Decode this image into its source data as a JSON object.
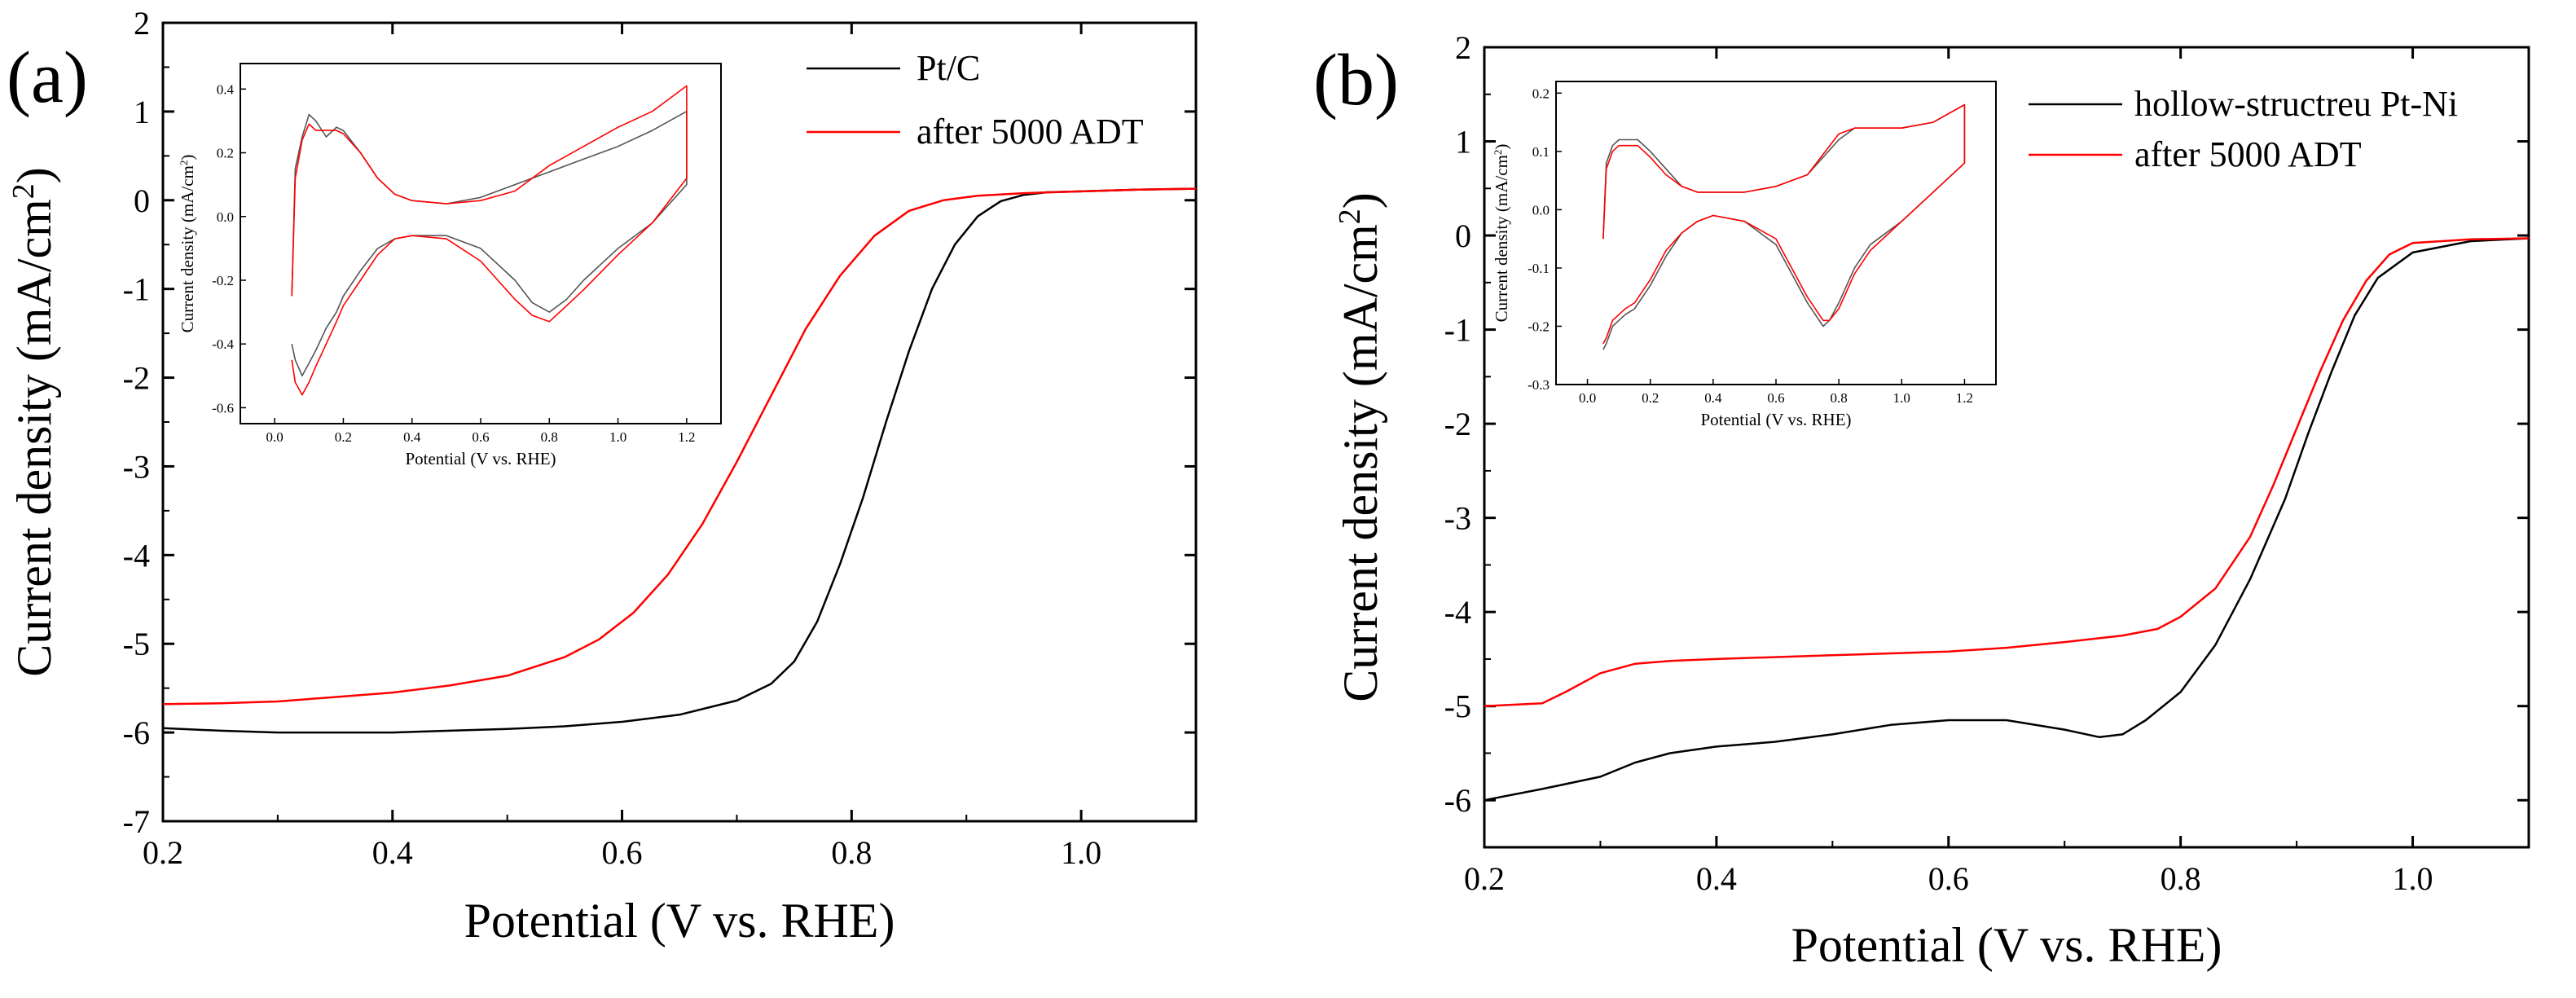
{
  "figure": {
    "description_labels": [
      "(a)",
      "(b)"
    ]
  },
  "chart_data": [
    {
      "type": "line",
      "panel_label": "(a)",
      "title": "",
      "xlabel": "Potential (V vs. RHE)",
      "ylabel": "Current density (mA/cm²)",
      "ylabel_main": "Current density (mA/cm",
      "ylabel_sup": "2",
      "ylabel_end": ")",
      "xlim": [
        0.2,
        1.1
      ],
      "ylim": [
        -7,
        2
      ],
      "xticks": [
        0.2,
        0.4,
        0.6,
        0.8,
        1.0
      ],
      "xtick_labels": [
        "0.2",
        "0.4",
        "0.6",
        "0.8",
        "1.0"
      ],
      "yticks": [
        -7,
        -6,
        -5,
        -4,
        -3,
        -2,
        -1,
        0,
        1,
        2
      ],
      "ytick_labels": [
        "-7",
        "-6",
        "-5",
        "-4",
        "-3",
        "-2",
        "-1",
        "0",
        "1",
        "2"
      ],
      "legend_position": "top-right",
      "series": [
        {
          "name": "Pt/C",
          "color": "#000000",
          "x": [
            0.2,
            0.25,
            0.3,
            0.35,
            0.4,
            0.45,
            0.5,
            0.55,
            0.6,
            0.65,
            0.7,
            0.73,
            0.75,
            0.77,
            0.79,
            0.81,
            0.83,
            0.85,
            0.87,
            0.89,
            0.91,
            0.93,
            0.95,
            0.97,
            1.0,
            1.05,
            1.1
          ],
          "y": [
            -5.95,
            -5.98,
            -6.0,
            -6.0,
            -6.0,
            -5.98,
            -5.96,
            -5.93,
            -5.88,
            -5.8,
            -5.64,
            -5.45,
            -5.2,
            -4.75,
            -4.1,
            -3.35,
            -2.5,
            -1.7,
            -1.0,
            -0.5,
            -0.18,
            -0.01,
            0.06,
            0.09,
            0.1,
            0.12,
            0.13
          ]
        },
        {
          "name": "after 5000 ADT",
          "color": "#ff0000",
          "x": [
            0.2,
            0.25,
            0.3,
            0.35,
            0.4,
            0.45,
            0.5,
            0.55,
            0.58,
            0.61,
            0.64,
            0.67,
            0.7,
            0.73,
            0.76,
            0.79,
            0.82,
            0.85,
            0.88,
            0.91,
            0.95,
            1.0,
            1.05,
            1.1
          ],
          "y": [
            -5.68,
            -5.67,
            -5.65,
            -5.6,
            -5.55,
            -5.47,
            -5.36,
            -5.15,
            -4.95,
            -4.65,
            -4.22,
            -3.65,
            -2.95,
            -2.2,
            -1.45,
            -0.85,
            -0.4,
            -0.12,
            0.0,
            0.05,
            0.08,
            0.1,
            0.12,
            0.13
          ]
        }
      ],
      "inset": {
        "xlabel": "Potential (V vs. RHE)",
        "ylabel": "Current density (mA/cm²)",
        "ylabel_main": "Current density (mA/cm",
        "ylabel_sup": "2",
        "ylabel_end": ")",
        "xlim": [
          -0.1,
          1.3
        ],
        "ylim": [
          -0.65,
          0.48
        ],
        "xticks": [
          0.0,
          0.2,
          0.4,
          0.6,
          0.8,
          1.0,
          1.2
        ],
        "xtick_labels": [
          "0.0",
          "0.2",
          "0.4",
          "0.6",
          "0.8",
          "1.0",
          "1.2"
        ],
        "yticks": [
          -0.6,
          -0.4,
          -0.2,
          0.0,
          0.2,
          0.4
        ],
        "ytick_labels": [
          "-0.6",
          "-0.4",
          "-0.2",
          "0.0",
          "0.2",
          "0.4"
        ],
        "series": [
          {
            "name": "Pt/C",
            "color": "#555555",
            "x": [
              0.05,
              0.06,
              0.08,
              0.1,
              0.12,
              0.15,
              0.18,
              0.2,
              0.25,
              0.3,
              0.35,
              0.4,
              0.5,
              0.6,
              0.7,
              0.8,
              0.9,
              1.0,
              1.1,
              1.2,
              1.2,
              1.1,
              1.0,
              0.9,
              0.85,
              0.8,
              0.75,
              0.7,
              0.6,
              0.5,
              0.4,
              0.35,
              0.3,
              0.25,
              0.2,
              0.18,
              0.15,
              0.12,
              0.1,
              0.08,
              0.06,
              0.05
            ],
            "y": [
              -0.25,
              0.15,
              0.25,
              0.32,
              0.3,
              0.25,
              0.28,
              0.27,
              0.2,
              0.12,
              0.07,
              0.05,
              0.04,
              0.06,
              0.1,
              0.14,
              0.18,
              0.22,
              0.27,
              0.33,
              0.1,
              -0.02,
              -0.1,
              -0.2,
              -0.26,
              -0.3,
              -0.27,
              -0.2,
              -0.1,
              -0.06,
              -0.06,
              -0.07,
              -0.1,
              -0.17,
              -0.25,
              -0.3,
              -0.35,
              -0.42,
              -0.46,
              -0.5,
              -0.45,
              -0.4
            ]
          },
          {
            "name": "after 5000 ADT",
            "color": "#ff0000",
            "x": [
              0.05,
              0.06,
              0.08,
              0.1,
              0.12,
              0.15,
              0.18,
              0.2,
              0.25,
              0.3,
              0.35,
              0.4,
              0.5,
              0.6,
              0.7,
              0.8,
              0.9,
              1.0,
              1.1,
              1.2,
              1.2,
              1.1,
              1.0,
              0.9,
              0.85,
              0.8,
              0.75,
              0.7,
              0.6,
              0.5,
              0.4,
              0.35,
              0.3,
              0.25,
              0.2,
              0.18,
              0.15,
              0.12,
              0.1,
              0.08,
              0.06,
              0.05
            ],
            "y": [
              -0.25,
              0.12,
              0.24,
              0.29,
              0.27,
              0.27,
              0.27,
              0.26,
              0.2,
              0.12,
              0.07,
              0.05,
              0.04,
              0.05,
              0.08,
              0.16,
              0.22,
              0.28,
              0.33,
              0.41,
              0.12,
              -0.02,
              -0.12,
              -0.23,
              -0.28,
              -0.33,
              -0.31,
              -0.26,
              -0.14,
              -0.07,
              -0.06,
              -0.07,
              -0.12,
              -0.2,
              -0.28,
              -0.33,
              -0.4,
              -0.47,
              -0.52,
              -0.56,
              -0.52,
              -0.45
            ]
          }
        ]
      }
    },
    {
      "type": "line",
      "panel_label": "(b)",
      "title": "",
      "xlabel": "Potential (V vs. RHE)",
      "ylabel": "Current density (mA/cm²)",
      "ylabel_main": "Current density (mA/cm",
      "ylabel_sup": "2",
      "ylabel_end": ")",
      "xlim": [
        0.2,
        1.1
      ],
      "ylim": [
        -6.5,
        2
      ],
      "xticks": [
        0.2,
        0.4,
        0.6,
        0.8,
        1.0
      ],
      "xtick_labels": [
        "0.2",
        "0.4",
        "0.6",
        "0.8",
        "1.0"
      ],
      "yticks": [
        -6,
        -5,
        -4,
        -3,
        -2,
        -1,
        0,
        1,
        2
      ],
      "ytick_labels": [
        "-6",
        "-5",
        "-4",
        "-3",
        "-2",
        "-1",
        "0",
        "1",
        "2"
      ],
      "legend_position": "top-right",
      "series": [
        {
          "name": "hollow-structreu Pt-Ni",
          "color": "#000000",
          "x": [
            0.2,
            0.25,
            0.3,
            0.33,
            0.36,
            0.4,
            0.45,
            0.5,
            0.55,
            0.6,
            0.65,
            0.7,
            0.73,
            0.75,
            0.77,
            0.8,
            0.83,
            0.86,
            0.89,
            0.91,
            0.93,
            0.95,
            0.97,
            1.0,
            1.05,
            1.1
          ],
          "y": [
            -6.0,
            -5.88,
            -5.75,
            -5.6,
            -5.5,
            -5.43,
            -5.38,
            -5.3,
            -5.2,
            -5.15,
            -5.15,
            -5.25,
            -5.33,
            -5.3,
            -5.15,
            -4.85,
            -4.35,
            -3.65,
            -2.8,
            -2.1,
            -1.45,
            -0.85,
            -0.45,
            -0.18,
            -0.06,
            -0.03
          ]
        },
        {
          "name": "after 5000 ADT",
          "color": "#ff0000",
          "x": [
            0.2,
            0.25,
            0.27,
            0.3,
            0.33,
            0.36,
            0.4,
            0.45,
            0.5,
            0.55,
            0.6,
            0.65,
            0.7,
            0.75,
            0.78,
            0.8,
            0.83,
            0.86,
            0.88,
            0.9,
            0.92,
            0.94,
            0.96,
            0.98,
            1.0,
            1.05,
            1.1
          ],
          "y": [
            -5.0,
            -4.97,
            -4.85,
            -4.65,
            -4.55,
            -4.52,
            -4.5,
            -4.48,
            -4.46,
            -4.44,
            -4.42,
            -4.38,
            -4.32,
            -4.25,
            -4.18,
            -4.05,
            -3.75,
            -3.2,
            -2.65,
            -2.05,
            -1.45,
            -0.9,
            -0.48,
            -0.2,
            -0.08,
            -0.04,
            -0.03
          ]
        }
      ],
      "inset": {
        "xlabel": "Potential (V vs. RHE)",
        "ylabel": "Current density (mA/cm²)",
        "ylabel_main": "Current density (mA/cm",
        "ylabel_sup": "2",
        "ylabel_end": ")",
        "xlim": [
          -0.1,
          1.3
        ],
        "ylim": [
          -0.3,
          0.22
        ],
        "xticks": [
          0.0,
          0.2,
          0.4,
          0.6,
          0.8,
          1.0,
          1.2
        ],
        "xtick_labels": [
          "0.0",
          "0.2",
          "0.4",
          "0.6",
          "0.8",
          "1.0",
          "1.2"
        ],
        "yticks": [
          -0.3,
          -0.2,
          -0.1,
          0.0,
          0.1,
          0.2
        ],
        "ytick_labels": [
          "-0.3",
          "-0.2",
          "-0.1",
          "0.0",
          "0.1",
          "0.2"
        ],
        "series": [
          {
            "name": "hollow-structreu Pt-Ni",
            "color": "#555555",
            "x": [
              0.05,
              0.06,
              0.08,
              0.1,
              0.13,
              0.16,
              0.2,
              0.25,
              0.3,
              0.35,
              0.4,
              0.5,
              0.6,
              0.7,
              0.8,
              0.85,
              0.9,
              1.0,
              1.1,
              1.2,
              1.2,
              1.1,
              1.0,
              0.9,
              0.85,
              0.8,
              0.77,
              0.75,
              0.7,
              0.6,
              0.5,
              0.4,
              0.35,
              0.3,
              0.25,
              0.2,
              0.15,
              0.12,
              0.1,
              0.08,
              0.06,
              0.05
            ],
            "y": [
              -0.05,
              0.08,
              0.11,
              0.12,
              0.12,
              0.12,
              0.1,
              0.07,
              0.04,
              0.03,
              0.03,
              0.03,
              0.04,
              0.06,
              0.12,
              0.14,
              0.14,
              0.14,
              0.15,
              0.18,
              0.08,
              0.03,
              -0.02,
              -0.06,
              -0.1,
              -0.16,
              -0.19,
              -0.2,
              -0.16,
              -0.06,
              -0.02,
              -0.01,
              -0.02,
              -0.04,
              -0.08,
              -0.13,
              -0.17,
              -0.18,
              -0.19,
              -0.2,
              -0.23,
              -0.24
            ]
          },
          {
            "name": "after 5000 ADT",
            "color": "#ff0000",
            "x": [
              0.05,
              0.06,
              0.08,
              0.1,
              0.13,
              0.16,
              0.2,
              0.25,
              0.3,
              0.35,
              0.4,
              0.5,
              0.6,
              0.7,
              0.8,
              0.85,
              0.9,
              1.0,
              1.1,
              1.2,
              1.2,
              1.1,
              1.0,
              0.9,
              0.85,
              0.8,
              0.77,
              0.75,
              0.7,
              0.6,
              0.5,
              0.4,
              0.35,
              0.3,
              0.25,
              0.2,
              0.15,
              0.12,
              0.1,
              0.08,
              0.06,
              0.05
            ],
            "y": [
              -0.05,
              0.07,
              0.1,
              0.11,
              0.11,
              0.11,
              0.09,
              0.06,
              0.04,
              0.03,
              0.03,
              0.03,
              0.04,
              0.06,
              0.13,
              0.14,
              0.14,
              0.14,
              0.15,
              0.18,
              0.08,
              0.03,
              -0.02,
              -0.07,
              -0.11,
              -0.17,
              -0.19,
              -0.19,
              -0.15,
              -0.05,
              -0.02,
              -0.01,
              -0.02,
              -0.04,
              -0.07,
              -0.12,
              -0.16,
              -0.17,
              -0.18,
              -0.19,
              -0.22,
              -0.23
            ]
          }
        ]
      }
    }
  ]
}
